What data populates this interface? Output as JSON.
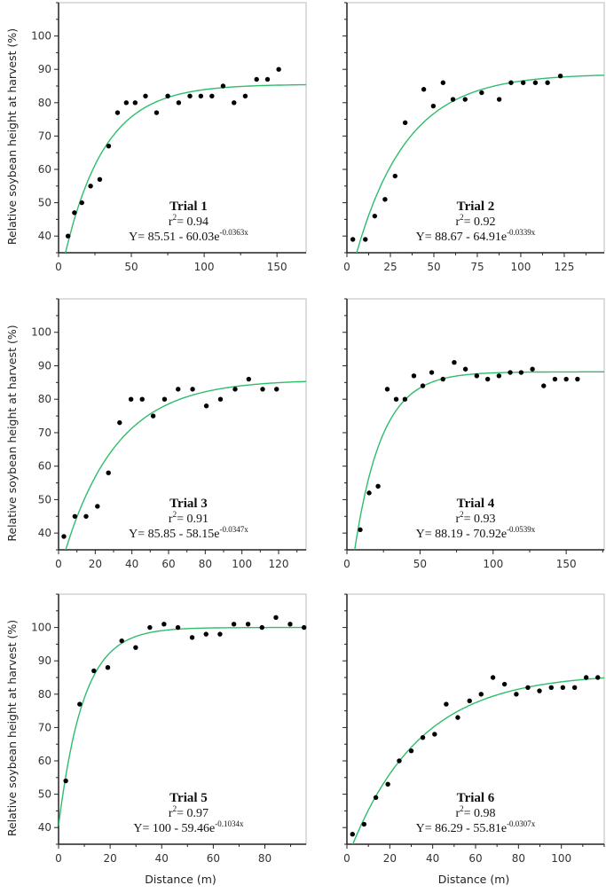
{
  "chart_data": [
    {
      "type": "scatter",
      "title": "Trial 1",
      "r2_label": "r",
      "r2_sup": "2",
      "r2_value": "= 0.94",
      "equation": "Y= 85.51 - 60.03e",
      "equation_exp": "-0.0363x",
      "fit": {
        "a": 85.51,
        "b": 60.03,
        "k": 0.0363
      },
      "xlim": [
        0,
        170
      ],
      "ylim": [
        35,
        110
      ],
      "xticks": [
        0,
        50,
        100,
        150
      ],
      "xminor": 25,
      "yticks": [
        40,
        50,
        60,
        70,
        80,
        90,
        100
      ],
      "yminor": 5,
      "xlabel": "",
      "ylabel": "Relative soybean height at harvest (%)",
      "x": [
        6.5,
        10.9,
        16,
        22,
        28.3,
        34.4,
        40.5,
        46.5,
        52.6,
        59.7,
        67.3,
        75,
        82.5,
        90.2,
        97.7,
        105.3,
        113,
        120.5,
        128.2,
        136,
        143.5,
        151.2
      ],
      "y": [
        40,
        47,
        50,
        55,
        57,
        67,
        77,
        80,
        80,
        82,
        77,
        82,
        80,
        82,
        82,
        82,
        85,
        80,
        82,
        87,
        87,
        90
      ]
    },
    {
      "type": "scatter",
      "title": "Trial 2",
      "r2_label": "r",
      "r2_sup": "2",
      "r2_value": "= 0.92",
      "equation": "Y= 88.67 - 64.91e",
      "equation_exp": "-0.0339x",
      "fit": {
        "a": 88.67,
        "b": 64.91,
        "k": 0.0339
      },
      "xlim": [
        0,
        148
      ],
      "ylim": [
        35,
        110
      ],
      "xticks": [
        0,
        25,
        50,
        75,
        100,
        125
      ],
      "xminor": 12.5,
      "yticks": [
        40,
        50,
        60,
        70,
        80,
        90,
        100
      ],
      "yminor": 5,
      "xlabel": "",
      "ylabel": "",
      "x": [
        3.4,
        10.6,
        16,
        21.9,
        27.7,
        33.5,
        44.2,
        49.7,
        55.3,
        61,
        68,
        77.5,
        87.6,
        94.4,
        101.4,
        108.4,
        115.4,
        122.8
      ],
      "y": [
        39,
        39,
        46,
        51,
        58,
        74,
        84,
        79,
        86,
        81,
        81,
        83,
        81,
        86,
        86,
        86,
        86,
        88
      ]
    },
    {
      "type": "scatter",
      "title": "Trial 3",
      "r2_label": "r",
      "r2_sup": "2",
      "r2_value": "= 0.91",
      "equation": "Y= 85.85 - 58.15e",
      "equation_exp": "-0.0347x",
      "fit": {
        "a": 85.85,
        "b": 58.15,
        "k": 0.0347
      },
      "xlim": [
        0,
        135
      ],
      "ylim": [
        35,
        110
      ],
      "xticks": [
        0,
        20,
        40,
        60,
        80,
        100,
        120
      ],
      "xminor": 10,
      "yticks": [
        40,
        50,
        60,
        70,
        80,
        90,
        100
      ],
      "yminor": 5,
      "xlabel": "",
      "ylabel": "Relative soybean height at harvest (%)",
      "x": [
        2.9,
        8.9,
        15,
        21.2,
        27.2,
        33.3,
        39.5,
        45.6,
        51.6,
        57.8,
        65.2,
        73.1,
        80.6,
        88.3,
        96.3,
        103.7,
        111.3,
        118.9
      ],
      "y": [
        39,
        45,
        45,
        48,
        58,
        73,
        80,
        80,
        75,
        80,
        83,
        83,
        78,
        80,
        83,
        86,
        83,
        83
      ]
    },
    {
      "type": "scatter",
      "title": "Trial 4",
      "r2_label": "r",
      "r2_sup": "2",
      "r2_value": "= 0.93",
      "equation": "Y= 88.19 - 70.92e",
      "equation_exp": "-0.0539x",
      "fit": {
        "a": 88.19,
        "b": 70.92,
        "k": 0.0539
      },
      "xlim": [
        0,
        176
      ],
      "ylim": [
        35,
        110
      ],
      "xticks": [
        0,
        50,
        100,
        150
      ],
      "xminor": 25,
      "yticks": [
        40,
        50,
        60,
        70,
        80,
        90,
        100
      ],
      "yminor": 5,
      "xlabel": "",
      "ylabel": "",
      "x": [
        9.1,
        15.2,
        21.3,
        27.6,
        33.7,
        39.7,
        45.8,
        51.9,
        58,
        65.7,
        73.4,
        81.1,
        88.8,
        96.3,
        104,
        111.7,
        119.2,
        126.9,
        134.6,
        142.3,
        150,
        157.7
      ],
      "y": [
        41,
        52,
        54,
        83,
        80,
        80,
        87,
        84,
        88,
        86,
        91,
        89,
        87,
        86,
        87,
        88,
        88,
        89,
        84,
        86,
        86,
        86
      ]
    },
    {
      "type": "scatter",
      "title": "Trial 5",
      "r2_label": "r",
      "r2_sup": "2",
      "r2_value": "= 0.97",
      "equation": "Y= 100 - 59.46e",
      "equation_exp": "-0.1034x",
      "fit": {
        "a": 100,
        "b": 59.46,
        "k": 0.1034
      },
      "xlim": [
        0,
        96
      ],
      "ylim": [
        35,
        110
      ],
      "xticks": [
        0,
        20,
        40,
        60,
        80
      ],
      "xminor": 10,
      "yticks": [
        40,
        50,
        60,
        70,
        80,
        90,
        100
      ],
      "yminor": 5,
      "xlabel": "Distance (m)",
      "ylabel": "Relative soybean height at harvest (%)",
      "x": [
        2.8,
        8.2,
        13.7,
        19.1,
        24.5,
        29.9,
        35.4,
        40.9,
        46.3,
        51.8,
        57.2,
        62.6,
        68,
        73.5,
        78.9,
        84.3,
        89.8,
        95.2
      ],
      "y": [
        54,
        77,
        87,
        88,
        96,
        94,
        100,
        101,
        100,
        97,
        98,
        98,
        101,
        101,
        100,
        103,
        101,
        100
      ]
    },
    {
      "type": "scatter",
      "title": "Trial 6",
      "r2_label": "r",
      "r2_sup": "2",
      "r2_value": "= 0.98",
      "equation": "Y= 86.29 - 55.81e",
      "equation_exp": "-0.0307x",
      "fit": {
        "a": 86.29,
        "b": 55.81,
        "k": 0.0307
      },
      "xlim": [
        0,
        120
      ],
      "ylim": [
        35,
        110
      ],
      "xticks": [
        0,
        20,
        40,
        60,
        80,
        100
      ],
      "xminor": 10,
      "yticks": [
        40,
        50,
        60,
        70,
        80,
        90,
        100
      ],
      "yminor": 5,
      "xlabel": "Distance (m)",
      "ylabel": "",
      "x": [
        2.6,
        8,
        13.5,
        19.1,
        24.4,
        30,
        35.4,
        40.9,
        46.3,
        51.7,
        57.2,
        62.6,
        68.1,
        73.5,
        79,
        84.4,
        89.8,
        95.3,
        100.7,
        106.2,
        111.6,
        117
      ],
      "y": [
        38,
        41,
        49,
        53,
        60,
        63,
        67,
        68,
        77,
        73,
        78,
        80,
        85,
        83,
        80,
        82,
        81,
        82,
        82,
        82,
        85,
        85
      ]
    }
  ],
  "colors": {
    "fit_line": "#2ebd6b",
    "points": "#000000",
    "frame": "#bbbbbb",
    "axis": "#222222"
  }
}
